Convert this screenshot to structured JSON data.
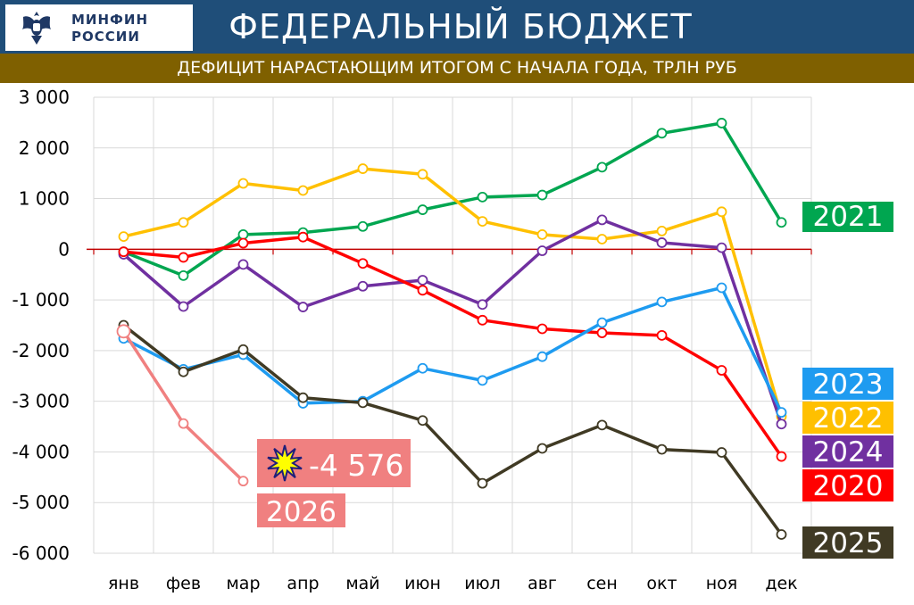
{
  "header": {
    "logo_line1": "МИНФИН",
    "logo_line2": "РОССИИ",
    "title": "ФЕДЕРАЛЬНЫЙ БЮДЖЕТ",
    "subtitle": "ДЕФИЦИТ НАРАСТАЮЩИМ ИТОГОМ С НАЧАЛА ГОДА, ТРЛН РУБ",
    "logo_icon": "double-headed-eagle-emblem"
  },
  "colors": {
    "header_bg": "#1f4e79",
    "subbar_bg": "#7f6000",
    "zero_line": "#c00000"
  },
  "chart_data": {
    "type": "line",
    "title": "ДЕФИЦИТ НАРАСТАЮЩИМ ИТОГОМ С НАЧАЛА ГОДА, ТРЛН РУБ",
    "categories": [
      "янв",
      "фев",
      "мар",
      "апр",
      "май",
      "июн",
      "июл",
      "авг",
      "сен",
      "окт",
      "ноя",
      "дек"
    ],
    "y_tick_labels": [
      "3 000",
      "2 000",
      "1 000",
      "0",
      "-1 000",
      "-2 000",
      "-3 000",
      "-4 000",
      "-5 000",
      "-6 000"
    ],
    "ylim": [
      -6000,
      3000
    ],
    "grid": true,
    "series": [
      {
        "name": "2021",
        "color": "#00a650",
        "values": [
          -50,
          -520,
          290,
          330,
          450,
          780,
          1030,
          1070,
          1620,
          2290,
          2490,
          530
        ]
      },
      {
        "name": "2022",
        "color": "#ffc000",
        "values": [
          250,
          530,
          1300,
          1160,
          1590,
          1480,
          550,
          290,
          200,
          360,
          740,
          -3300
        ]
      },
      {
        "name": "2024",
        "color": "#7030a0",
        "values": [
          -100,
          -1130,
          -300,
          -1140,
          -730,
          -610,
          -1090,
          -30,
          580,
          130,
          30,
          -3450
        ]
      },
      {
        "name": "2020",
        "color": "#ff0000",
        "values": [
          -50,
          -160,
          120,
          240,
          -280,
          -810,
          -1400,
          -1570,
          -1650,
          -1700,
          -2390,
          -4090
        ]
      },
      {
        "name": "2023",
        "color": "#1e9bf0",
        "values": [
          -1760,
          -2370,
          -2080,
          -3040,
          -3000,
          -2350,
          -2590,
          -2120,
          -1450,
          -1040,
          -760,
          -3220
        ]
      },
      {
        "name": "2025",
        "color": "#403a24",
        "values": [
          -1500,
          -2420,
          -1980,
          -2930,
          -3030,
          -3380,
          -4620,
          -3930,
          -3470,
          -3950,
          -4010,
          -5630
        ]
      },
      {
        "name": "2026",
        "color": "#f08080",
        "values": [
          -1620,
          -3440,
          -4576,
          null,
          null,
          null,
          null,
          null,
          null,
          null,
          null,
          null
        ]
      }
    ],
    "legend_placement": "right, series labels next to line ends",
    "annotations": [
      {
        "text": "-4 576",
        "series": "2026",
        "icon": "explosion-icon",
        "bg": "#f08080"
      }
    ],
    "label_colors": {
      "2021": "#00a650",
      "2023": "#1e9bf0",
      "2022": "#ffc000",
      "2024": "#7030a0",
      "2020": "#ff0000",
      "2025": "#403a24",
      "2026": "#f08080"
    }
  }
}
